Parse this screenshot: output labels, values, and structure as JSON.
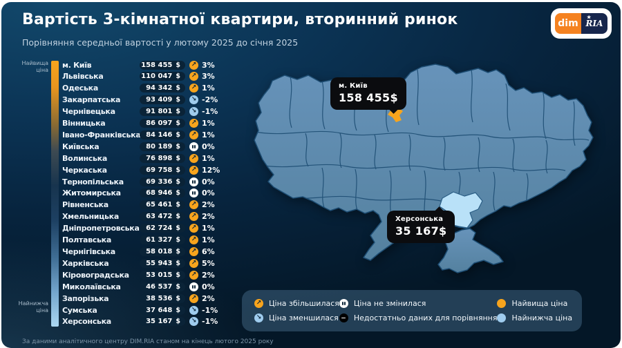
{
  "header": {
    "title": "Вартість 3-кімнатної квартири, вторинний ринок",
    "subtitle": "Порівняння середньої вартості у лютому 2025 до січня 2025",
    "logo_dim": "dim",
    "logo_ria": "RIA"
  },
  "scale": {
    "top_label": "Найвища ціна",
    "bottom_label": "Найнижча ціна"
  },
  "chart_data": {
    "type": "table",
    "title": "Вартість 3-кімнатної квартири, вторинний ринок",
    "subtitle": "Порівняння середньої вартості у лютому 2025 до січня 2025",
    "columns": [
      "region",
      "price_usd",
      "change_percent",
      "trend"
    ],
    "currency": "$",
    "rows": [
      {
        "name": "м. Київ",
        "price": "158 455",
        "price_usd": 158455,
        "change": "3%",
        "trend": "up"
      },
      {
        "name": "Львівська",
        "price": "110 047",
        "price_usd": 110047,
        "change": "3%",
        "trend": "up"
      },
      {
        "name": "Одеська",
        "price": "94 342",
        "price_usd": 94342,
        "change": "1%",
        "trend": "up"
      },
      {
        "name": "Закарпатська",
        "price": "93 409",
        "price_usd": 93409,
        "change": "-2%",
        "trend": "down"
      },
      {
        "name": "Чернівецька",
        "price": "91 801",
        "price_usd": 91801,
        "change": "-1%",
        "trend": "down"
      },
      {
        "name": "Вінницька",
        "price": "86 097",
        "price_usd": 86097,
        "change": "1%",
        "trend": "up"
      },
      {
        "name": "Івано-Франківська",
        "price": "84 146",
        "price_usd": 84146,
        "change": "1%",
        "trend": "up"
      },
      {
        "name": "Київська",
        "price": "80 189",
        "price_usd": 80189,
        "change": "0%",
        "trend": "pause"
      },
      {
        "name": "Волинська",
        "price": "76 898",
        "price_usd": 76898,
        "change": "1%",
        "trend": "up"
      },
      {
        "name": "Черкаська",
        "price": "69 758",
        "price_usd": 69758,
        "change": "12%",
        "trend": "up"
      },
      {
        "name": "Тернопільська",
        "price": "69 336",
        "price_usd": 69336,
        "change": "0%",
        "trend": "pause"
      },
      {
        "name": "Житомирська",
        "price": "68 946",
        "price_usd": 68946,
        "change": "0%",
        "trend": "pause"
      },
      {
        "name": "Рівненська",
        "price": "65 461",
        "price_usd": 65461,
        "change": "2%",
        "trend": "up"
      },
      {
        "name": "Хмельницька",
        "price": "63 472",
        "price_usd": 63472,
        "change": "2%",
        "trend": "up"
      },
      {
        "name": "Дніпропетровська",
        "price": "62 724",
        "price_usd": 62724,
        "change": "1%",
        "trend": "up"
      },
      {
        "name": "Полтавська",
        "price": "61 327",
        "price_usd": 61327,
        "change": "1%",
        "trend": "up"
      },
      {
        "name": "Чернігівська",
        "price": "58 018",
        "price_usd": 58018,
        "change": "6%",
        "trend": "up"
      },
      {
        "name": "Харківська",
        "price": "55 943",
        "price_usd": 55943,
        "change": "5%",
        "trend": "up"
      },
      {
        "name": "Кіровоградська",
        "price": "53 015",
        "price_usd": 53015,
        "change": "2%",
        "trend": "up"
      },
      {
        "name": "Миколаївська",
        "price": "46 537",
        "price_usd": 46537,
        "change": "0%",
        "trend": "pause"
      },
      {
        "name": "Запорізька",
        "price": "38 536",
        "price_usd": 38536,
        "change": "2%",
        "trend": "up"
      },
      {
        "name": "Сумська",
        "price": "37 648",
        "price_usd": 37648,
        "change": "-1%",
        "trend": "down"
      },
      {
        "name": "Херсонська",
        "price": "35 167",
        "price_usd": 35167,
        "change": "-1%",
        "trend": "down"
      }
    ],
    "highlights": {
      "highest": {
        "region": "м. Київ",
        "price_usd": 158455
      },
      "lowest": {
        "region": "Херсонська",
        "price_usd": 35167
      }
    }
  },
  "map": {
    "callouts": [
      {
        "region": "м. Київ",
        "price": "158 455$"
      },
      {
        "region": "Херсонська",
        "price": "35 167$"
      }
    ]
  },
  "legend": {
    "columns": [
      [
        {
          "icon": "up",
          "label": "Ціна збільшилася"
        },
        {
          "icon": "down",
          "label": "Ціна зменшилася"
        }
      ],
      [
        {
          "icon": "pause",
          "label": "Ціна не змінилася"
        },
        {
          "icon": "minus",
          "label": "Недостатньо даних для порівняння"
        }
      ],
      [
        {
          "icon": "dot-orange",
          "label": "Найвища ціна"
        },
        {
          "icon": "dot-blue",
          "label": "Найнижча ціна"
        }
      ]
    ]
  },
  "footer": "За даними аналітичного центру DIM.RIA станом на кінець лютого 2025 року",
  "colors": {
    "accent_orange": "#f7a41d",
    "accent_blue": "#9fccee",
    "map_fill": "#6190b7",
    "map_border": "#1d4d73",
    "highlight_region": "#b9e1f8",
    "callout_bg": "#0b0c0f"
  }
}
